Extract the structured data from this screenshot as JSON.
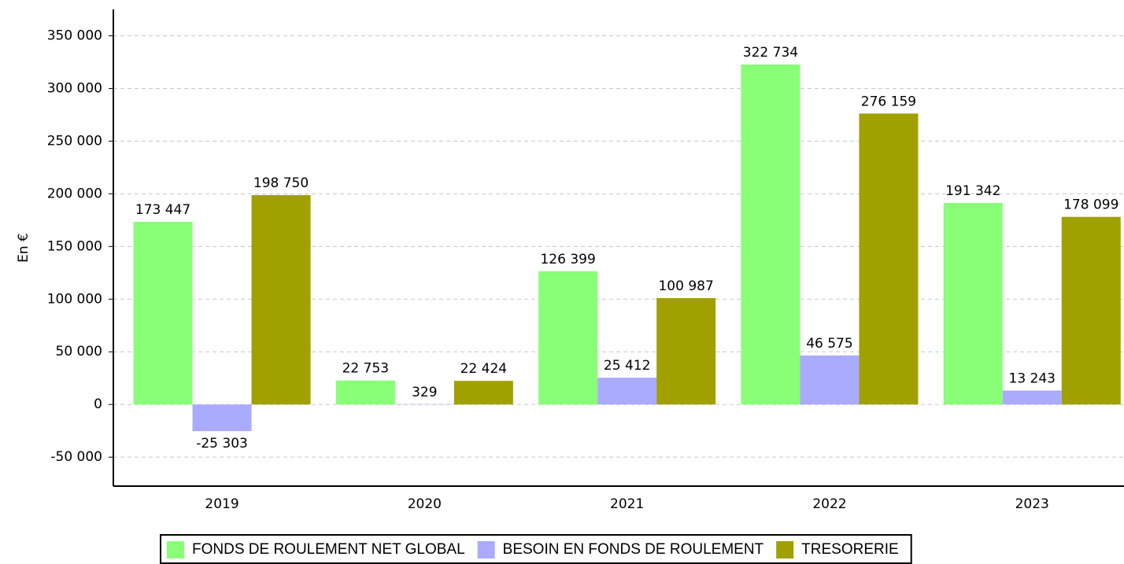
{
  "chart_data": {
    "type": "bar",
    "y_label": "En €",
    "categories": [
      "2019",
      "2020",
      "2021",
      "2022",
      "2023"
    ],
    "series": [
      {
        "name": "FONDS DE ROULEMENT NET GLOBAL",
        "color": "#88ff77",
        "values": [
          173447,
          22753,
          126399,
          322734,
          191342
        ],
        "value_labels": [
          "173 447",
          "22 753",
          "126 399",
          "322 734",
          "191 342"
        ]
      },
      {
        "name": "BESOIN EN FONDS DE ROULEMENT",
        "color": "#aaaaff",
        "values": [
          -25303,
          329,
          25412,
          46575,
          13243
        ],
        "value_labels": [
          "-25 303",
          "329",
          "25 412",
          "46 575",
          "13 243"
        ]
      },
      {
        "name": "TRESORERIE",
        "color": "#a0a000",
        "values": [
          198750,
          22424,
          100987,
          276159,
          178099
        ],
        "value_labels": [
          "198 750",
          "22 424",
          "100 987",
          "276 159",
          "178 099"
        ]
      }
    ],
    "ylim": [
      -77500,
      375000
    ],
    "yticks": [
      {
        "value": -50000,
        "label": "-50 000"
      },
      0,
      {
        "value": 50000,
        "label": "50 000"
      },
      {
        "value": 100000,
        "label": "100 000"
      },
      {
        "value": 150000,
        "label": "150 000"
      },
      {
        "value": 200000,
        "label": "200 000"
      },
      {
        "value": 250000,
        "label": "250 000"
      },
      {
        "value": 300000,
        "label": "300 000"
      },
      {
        "value": 350000,
        "label": "350 000"
      }
    ],
    "grid": true,
    "legend": "bottom"
  }
}
